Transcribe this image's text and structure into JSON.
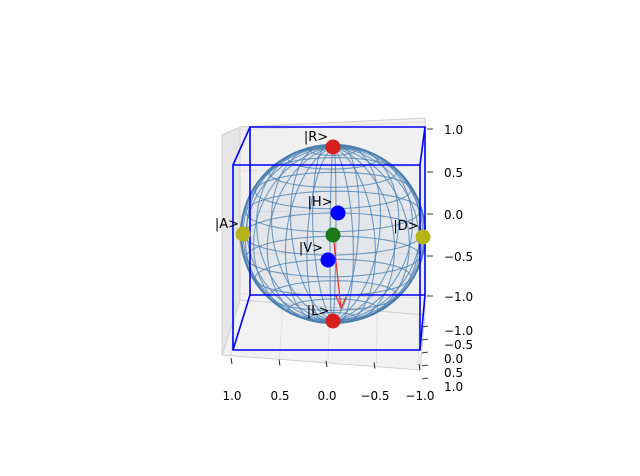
{
  "chart_data": {
    "type": "scatter",
    "subtype": "3d-bloch-sphere",
    "title": "",
    "grid": true,
    "box_color": "#0000ff",
    "sphere_color": "#4a7fb0",
    "axes": {
      "vertical": {
        "ticks": [
          1.0,
          0.5,
          0.0,
          -0.5,
          -1.0
        ],
        "labels": [
          "1.0",
          "0.5",
          "0.0",
          "−0.5",
          "−1.0"
        ],
        "range": [
          -1.0,
          1.0
        ]
      },
      "horizontal": {
        "ticks": [
          1.0,
          0.5,
          0.0,
          -0.5,
          -1.0
        ],
        "labels": [
          "1.0",
          "0.5",
          "0.0",
          "−0.5",
          "−1.0"
        ],
        "range": [
          -1.0,
          1.0
        ]
      },
      "depth": {
        "ticks": [
          -1.0,
          -0.5,
          0.0,
          0.5,
          1.0
        ],
        "labels": [
          "−1.0",
          "−0.5",
          "0.0",
          "0.5",
          "1.0"
        ],
        "range": [
          -1.0,
          1.0
        ]
      }
    },
    "points": [
      {
        "name": "R",
        "label": "|R>",
        "xyz": [
          0,
          0,
          1
        ],
        "color": "#d62020"
      },
      {
        "name": "L",
        "label": "|L>",
        "xyz": [
          0,
          0,
          -1
        ],
        "color": "#d62020"
      },
      {
        "name": "H",
        "label": "|H>",
        "xyz": [
          1,
          0,
          0
        ],
        "color": "#0000ff"
      },
      {
        "name": "V",
        "label": "|V>",
        "xyz": [
          -1,
          0,
          0
        ],
        "color": "#0000ff"
      },
      {
        "name": "A",
        "label": "|A>",
        "xyz": [
          0,
          1,
          0
        ],
        "color": "#b5b51a"
      },
      {
        "name": "D",
        "label": "|D>",
        "xyz": [
          0,
          -1,
          0
        ],
        "color": "#b5b51a"
      },
      {
        "name": "center",
        "label": "",
        "xyz": [
          0,
          0,
          0
        ],
        "color": "#1a7a1a"
      }
    ],
    "vector": {
      "from": [
        0,
        0,
        0
      ],
      "to": [
        -0.25,
        -0.1,
        -0.8
      ],
      "color": "#e03030"
    }
  }
}
